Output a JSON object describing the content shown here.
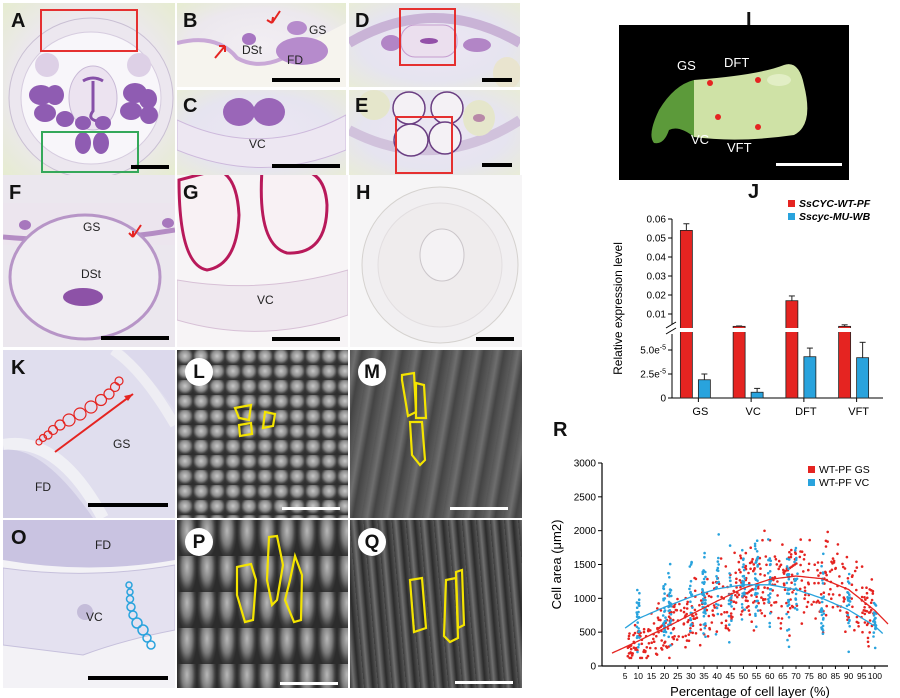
{
  "figure": {
    "panels": {
      "A": {
        "label": "A"
      },
      "B": {
        "label": "B",
        "annotations": [
          "DSt",
          "GS",
          "FD"
        ]
      },
      "C": {
        "label": "C",
        "annotations": [
          "VC"
        ]
      },
      "D": {
        "label": "D"
      },
      "E": {
        "label": "E"
      },
      "F": {
        "label": "F",
        "annotations": [
          "GS",
          "DSt"
        ]
      },
      "G": {
        "label": "G",
        "annotations": [
          "VC"
        ]
      },
      "H": {
        "label": "H"
      },
      "I": {
        "label": "I",
        "annotations": [
          "GS",
          "DFT",
          "VC",
          "VFT"
        ]
      },
      "J": {
        "label": "J"
      },
      "K": {
        "label": "K",
        "annotations": [
          "GS",
          "FD"
        ]
      },
      "L": {
        "label": "L"
      },
      "M": {
        "label": "M"
      },
      "O": {
        "label": "O",
        "annotations": [
          "FD",
          "VC"
        ]
      },
      "P": {
        "label": "P"
      },
      "Q": {
        "label": "Q"
      },
      "R": {
        "label": "R"
      }
    },
    "colors": {
      "red": "#e52421",
      "blue": "#29a3dd",
      "yellow": "#f4e400",
      "roi_red": "#e53030",
      "roi_green": "#35a85a"
    }
  },
  "chart_data": [
    {
      "id": "J",
      "type": "bar",
      "title": "",
      "xlabel": "",
      "ylabel": "Relative expression level",
      "categories": [
        "GS",
        "VC",
        "DFT",
        "VFT"
      ],
      "series": [
        {
          "name": "SsCYC-WT-PF",
          "color": "#e52421",
          "values": [
            0.054,
            0.0035,
            0.017,
            0.0035
          ],
          "errors": [
            0.0035,
            0.0002,
            0.0025,
            0.0008
          ]
        },
        {
          "name": "Sscyc-MU-WB",
          "color": "#29a3dd",
          "values": [
            1.9e-05,
            6e-06,
            4.3e-05,
            4.2e-05
          ],
          "errors": [
            6e-06,
            4e-06,
            9e-06,
            1.6e-05
          ]
        }
      ],
      "axis_break": true,
      "upper_yticks": [
        "0.01",
        "0.02",
        "0.03",
        "0.04",
        "0.05",
        "0.06"
      ],
      "upper_ylim": [
        0,
        0.06
      ],
      "lower_yticks": [
        "0",
        "2.5e-5",
        "5.0e-5"
      ],
      "lower_ylim": [
        0,
        6e-05
      ],
      "legend": "top-right"
    },
    {
      "id": "R",
      "type": "scatter",
      "title": "",
      "xlabel": "Percentage of cell layer (%)",
      "ylabel": "Cell area (μm2)",
      "xticks": [
        "5",
        "10",
        "15",
        "20",
        "25",
        "30",
        "35",
        "40",
        "45",
        "50",
        "55",
        "60",
        "65",
        "70",
        "75",
        "80",
        "85",
        "90",
        "95",
        "100"
      ],
      "yticks": [
        "0",
        "500",
        "1000",
        "1500",
        "2000",
        "2500",
        "3000"
      ],
      "xlim": [
        0,
        105
      ],
      "ylim": [
        0,
        3000
      ],
      "legend": "top-right",
      "series": [
        {
          "name": "WT-PF GS",
          "color": "#e52421",
          "fit": {
            "x": [
              0,
              10,
              20,
              30,
              40,
              50,
              60,
              70,
              80,
              90,
              100,
              105
            ],
            "y": [
              190,
              370,
              560,
              760,
              960,
              1150,
              1280,
              1330,
              1290,
              1130,
              820,
              620
            ]
          }
        },
        {
          "name": "WT-PF VC",
          "color": "#29a3dd",
          "fit": {
            "x": [
              5,
              10,
              20,
              30,
              40,
              50,
              60,
              70,
              80,
              90,
              100,
              103
            ],
            "y": [
              560,
              700,
              870,
              1020,
              1140,
              1200,
              1200,
              1130,
              1000,
              830,
              590,
              480
            ]
          }
        }
      ]
    }
  ]
}
